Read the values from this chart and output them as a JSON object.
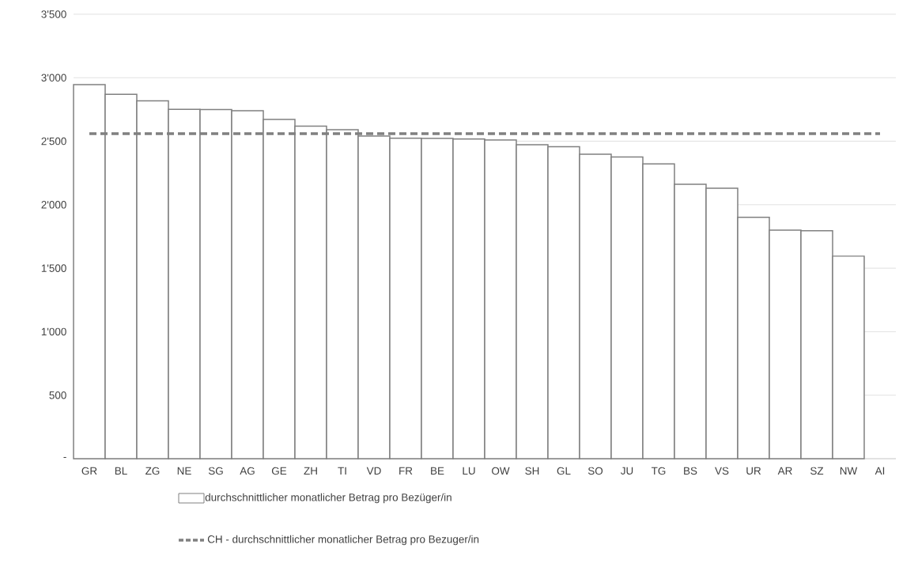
{
  "chart_data": {
    "type": "bar",
    "categories": [
      "GR",
      "BL",
      "ZG",
      "NE",
      "SG",
      "AG",
      "GE",
      "ZH",
      "TI",
      "VD",
      "FR",
      "BE",
      "LU",
      "OW",
      "SH",
      "GL",
      "SO",
      "JU",
      "TG",
      "BS",
      "VS",
      "UR",
      "AR",
      "SZ",
      "NW",
      "AI"
    ],
    "series": [
      {
        "name": "durchschnittlicher monatlicher Betrag pro Bezüger/in",
        "color": "#808080",
        "values": [
          2945,
          2870,
          2818,
          2751,
          2749,
          2740,
          2671,
          2619,
          2591,
          2541,
          2524,
          2522,
          2518,
          2509,
          2472,
          2457,
          2397,
          2376,
          2322,
          2161,
          2130,
          1901,
          1800,
          1795,
          1595,
          null
        ]
      }
    ],
    "ref_lines": [
      {
        "axis": "y",
        "value": 2560,
        "label": "CH - durchschnittlicher monatlicher Betrag pro Bezuger/in",
        "color": "#808080",
        "line_style": "dashed"
      }
    ],
    "ylim": [
      0,
      3500
    ],
    "yticks": [
      {
        "value": 0,
        "label": "-"
      },
      {
        "value": 500,
        "label": "500"
      },
      {
        "value": 1000,
        "label": "1'000"
      },
      {
        "value": 1500,
        "label": "1'500"
      },
      {
        "value": 2000,
        "label": "2'000"
      },
      {
        "value": 2500,
        "label": "2'500"
      },
      {
        "value": 3000,
        "label": "3'000"
      },
      {
        "value": 3500,
        "label": "3'500"
      }
    ],
    "grid": "y",
    "legend": "bottom"
  }
}
